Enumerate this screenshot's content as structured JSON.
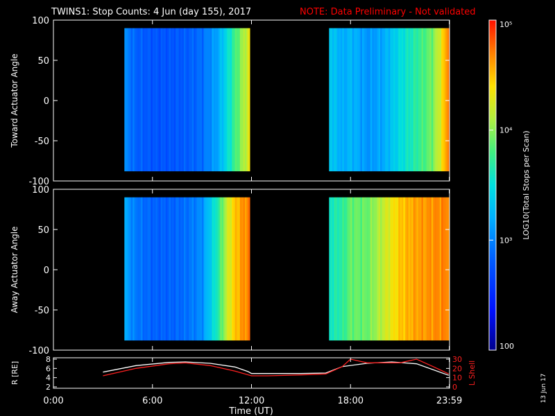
{
  "chart_data": {
    "type": "heatmap",
    "title": "TWINS1: Stop Counts:  4 Jun (day 155), 2017",
    "note": "NOTE: Data Preliminary - Not validated",
    "xlabel": "Time (UT)",
    "x_ticks": [
      "0:00",
      "6:00",
      "12:00",
      "18:00",
      "23:59"
    ],
    "x_range_hours": [
      0,
      24
    ],
    "data_intervals_hours": [
      [
        4.3,
        11.9
      ],
      [
        16.7,
        23.95
      ]
    ],
    "colorbar": {
      "label": "LOG10(Total Stops per Scan)",
      "scale": "log",
      "range": [
        100,
        100000
      ],
      "ticks": [
        "100",
        "10³",
        "10⁴",
        "10⁵"
      ]
    },
    "panels": [
      {
        "ylabel": "Toward Actuator Angle",
        "ylim": [
          -100,
          100
        ],
        "y_ticks": [
          "100",
          "50",
          "0",
          "-50",
          "-100"
        ],
        "angle_range": [
          -88,
          90
        ],
        "mean_counts_by_hour": [
          {
            "x": 4.3,
            "v": 1100
          },
          {
            "x": 5,
            "v": 700
          },
          {
            "x": 6,
            "v": 600
          },
          {
            "x": 7,
            "v": 600
          },
          {
            "x": 8,
            "v": 650
          },
          {
            "x": 9,
            "v": 800
          },
          {
            "x": 10,
            "v": 1500
          },
          {
            "x": 10.5,
            "v": 3000
          },
          {
            "x": 11,
            "v": 6000
          },
          {
            "x": 11.5,
            "v": 12000
          },
          {
            "x": 11.9,
            "v": 20000
          },
          {
            "x": 16.7,
            "v": 2500
          },
          {
            "x": 17.5,
            "v": 1500
          },
          {
            "x": 18,
            "v": 1800
          },
          {
            "x": 19,
            "v": 1200
          },
          {
            "x": 20,
            "v": 1500
          },
          {
            "x": 21,
            "v": 3000
          },
          {
            "x": 22,
            "v": 5000
          },
          {
            "x": 23,
            "v": 9000
          },
          {
            "x": 23.5,
            "v": 20000
          },
          {
            "x": 23.95,
            "v": 60000
          }
        ]
      },
      {
        "ylabel": "Away Actuator Angle",
        "ylim": [
          -100,
          100
        ],
        "y_ticks": [
          "100",
          "50",
          "0",
          "-50",
          "-100"
        ],
        "angle_range": [
          -88,
          90
        ],
        "mean_counts_by_hour": [
          {
            "x": 4.3,
            "v": 1500
          },
          {
            "x": 5,
            "v": 900
          },
          {
            "x": 6,
            "v": 700
          },
          {
            "x": 7,
            "v": 700
          },
          {
            "x": 8,
            "v": 800
          },
          {
            "x": 9,
            "v": 1100
          },
          {
            "x": 10,
            "v": 5000
          },
          {
            "x": 10.5,
            "v": 15000
          },
          {
            "x": 11,
            "v": 30000
          },
          {
            "x": 11.5,
            "v": 45000
          },
          {
            "x": 11.9,
            "v": 50000
          },
          {
            "x": 16.7,
            "v": 4000
          },
          {
            "x": 17.5,
            "v": 5000
          },
          {
            "x": 18,
            "v": 8000
          },
          {
            "x": 19,
            "v": 8000
          },
          {
            "x": 20,
            "v": 15000
          },
          {
            "x": 21,
            "v": 30000
          },
          {
            "x": 22,
            "v": 40000
          },
          {
            "x": 23,
            "v": 45000
          },
          {
            "x": 23.95,
            "v": 50000
          }
        ]
      }
    ],
    "orbit": {
      "r_label": "R [RE]",
      "l_label": "L Shell",
      "r_ticks": [
        "8",
        "6",
        "4",
        "2"
      ],
      "r_range": [
        2,
        8
      ],
      "l_ticks": [
        "30",
        "20",
        "10",
        "0"
      ],
      "l_range": [
        0,
        30
      ],
      "r_series": [
        {
          "x": 3,
          "y": 5.2
        },
        {
          "x": 5,
          "y": 6.6
        },
        {
          "x": 7,
          "y": 7.3
        },
        {
          "x": 8,
          "y": 7.4
        },
        {
          "x": 9.5,
          "y": 7.1
        },
        {
          "x": 11,
          "y": 6.3
        },
        {
          "x": 11.8,
          "y": 5.3
        },
        {
          "x": 12,
          "y": 4.9
        },
        {
          "x": 13,
          "y": 4.9
        },
        {
          "x": 15,
          "y": 4.9
        },
        {
          "x": 16.5,
          "y": 5.0
        },
        {
          "x": 17.5,
          "y": 6.4
        },
        {
          "x": 19,
          "y": 7.1
        },
        {
          "x": 20.5,
          "y": 7.4
        },
        {
          "x": 22,
          "y": 7.0
        },
        {
          "x": 23.95,
          "y": 4.5
        }
      ],
      "l_series": [
        {
          "x": 3,
          "y": 12
        },
        {
          "x": 5,
          "y": 20
        },
        {
          "x": 7,
          "y": 25
        },
        {
          "x": 8,
          "y": 26
        },
        {
          "x": 9.5,
          "y": 23
        },
        {
          "x": 11,
          "y": 17
        },
        {
          "x": 12,
          "y": 12
        },
        {
          "x": 13,
          "y": 12
        },
        {
          "x": 15,
          "y": 13
        },
        {
          "x": 16.5,
          "y": 14
        },
        {
          "x": 17.5,
          "y": 22
        },
        {
          "x": 18,
          "y": 30
        },
        {
          "x": 19,
          "y": 26
        },
        {
          "x": 21,
          "y": 26
        },
        {
          "x": 22,
          "y": 30
        },
        {
          "x": 23,
          "y": 22
        },
        {
          "x": 23.95,
          "y": 14
        }
      ]
    },
    "side_date": "13 Jun 17",
    "colors": {
      "background": "#000000",
      "axes": "#ffffff",
      "note": "#ff0000",
      "r_line": "#ffffff",
      "l_line": "#ff2020"
    }
  }
}
